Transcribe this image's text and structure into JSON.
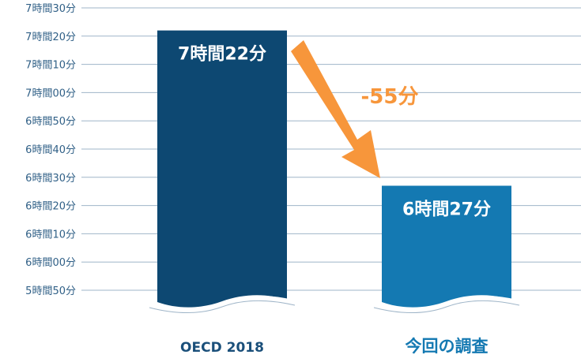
{
  "chart_data": {
    "type": "bar",
    "title": "",
    "xlabel": "",
    "ylabel": "",
    "ylim": [
      350,
      450
    ],
    "grid": true,
    "y_ticks": [
      {
        "value": 450,
        "label": "7時間30分"
      },
      {
        "value": 440,
        "label": "7時間20分"
      },
      {
        "value": 430,
        "label": "7時間10分"
      },
      {
        "value": 420,
        "label": "7時間00分"
      },
      {
        "value": 410,
        "label": "6時間50分"
      },
      {
        "value": 400,
        "label": "6時間40分"
      },
      {
        "value": 390,
        "label": "6時間30分"
      },
      {
        "value": 380,
        "label": "6時間20分"
      },
      {
        "value": 370,
        "label": "6時間10分"
      },
      {
        "value": 360,
        "label": "6時間00分"
      },
      {
        "value": 350,
        "label": "5時間50分"
      }
    ],
    "categories": [
      "OECD 2018",
      "今回の調査"
    ],
    "values": [
      442,
      387
    ],
    "value_labels": [
      "7時間22分",
      "6時間27分"
    ],
    "annotation": {
      "text": "-55分",
      "color": "#f7963b"
    },
    "colors": {
      "bars": [
        "#0d4872",
        "#1479b2"
      ],
      "categories": [
        "#1a4f7a",
        "#1479b2"
      ],
      "grid": "#9fb5c8",
      "arrow": "#f7963b"
    }
  }
}
